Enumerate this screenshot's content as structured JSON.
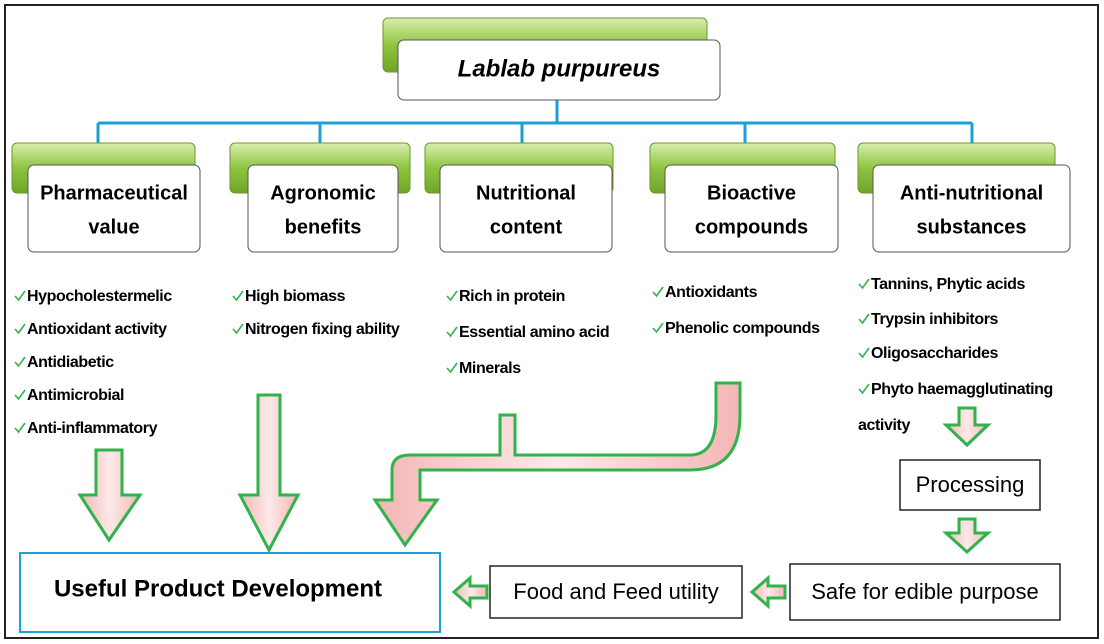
{
  "title": "Lablab purpureus",
  "categories": [
    {
      "label": [
        "Pharmaceutical",
        "value"
      ],
      "items": [
        "Hypocholestermelic",
        "Antioxidant activity",
        "Antidiabetic",
        "Antimicrobial",
        "Anti-inflammatory"
      ]
    },
    {
      "label": [
        "Agronomic",
        "benefits"
      ],
      "items": [
        "High biomass",
        "Nitrogen fixing ability"
      ]
    },
    {
      "label": [
        "Nutritional",
        "content"
      ],
      "items": [
        "Rich in protein",
        "Essential amino acid",
        "Minerals"
      ]
    },
    {
      "label": [
        "Bioactive",
        "compounds"
      ],
      "items": [
        "Antioxidants",
        "Phenolic compounds"
      ]
    },
    {
      "label": [
        "Anti-nutritional",
        "substances"
      ],
      "items": [
        "Tannins, Phytic acids",
        "Trypsin inhibitors",
        "Oligosaccharides",
        "Phyto haemagglutinating activity"
      ]
    }
  ],
  "processing": "Processing",
  "safe": "Safe for edible purpose",
  "food": "Food and Feed utility",
  "useful": "Useful Product Development"
}
